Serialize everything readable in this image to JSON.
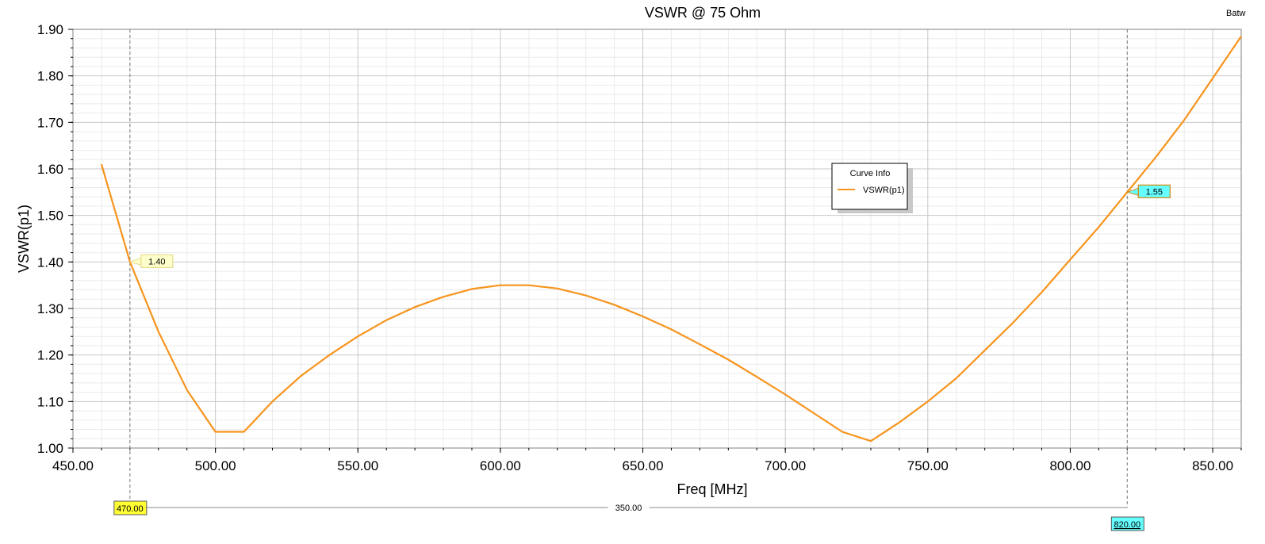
{
  "corner_text": "Batw",
  "chart_data": {
    "type": "line",
    "title": "VSWR @ 75 Ohm",
    "xlabel": "Freq [MHz]",
    "ylabel": "VSWR(p1)",
    "xlim": [
      450,
      860
    ],
    "ylim": [
      1.0,
      1.9
    ],
    "grid": true,
    "x_ticks": [
      "450.00",
      "500.00",
      "550.00",
      "600.00",
      "650.00",
      "700.00",
      "750.00",
      "800.00",
      "850.00"
    ],
    "y_ticks": [
      "1.00",
      "1.10",
      "1.20",
      "1.30",
      "1.40",
      "1.50",
      "1.60",
      "1.70",
      "1.80",
      "1.90"
    ],
    "legend": {
      "title": "Curve Info",
      "placement": "center-right"
    },
    "series": [
      {
        "name": "VSWR(p1)",
        "color": "#f7941d",
        "x": [
          460,
          470,
          480,
          490,
          500,
          510,
          520,
          530,
          540,
          550,
          560,
          570,
          580,
          590,
          600,
          610,
          620,
          630,
          640,
          650,
          660,
          670,
          680,
          690,
          700,
          710,
          720,
          730,
          740,
          750,
          760,
          770,
          780,
          790,
          800,
          810,
          820,
          830,
          840,
          850,
          860
        ],
        "y": [
          1.61,
          1.4,
          1.25,
          1.125,
          1.035,
          1.035,
          1.1,
          1.155,
          1.2,
          1.24,
          1.275,
          1.303,
          1.325,
          1.342,
          1.35,
          1.35,
          1.343,
          1.328,
          1.308,
          1.283,
          1.255,
          1.223,
          1.19,
          1.153,
          1.115,
          1.075,
          1.035,
          1.015,
          1.055,
          1.1,
          1.15,
          1.21,
          1.27,
          1.335,
          1.405,
          1.475,
          1.55,
          1.625,
          1.705,
          1.795,
          1.885
        ]
      }
    ],
    "markers": [
      {
        "x": 470,
        "value_label": "1.40",
        "x_label": "470.00",
        "x_color": "#ffff33",
        "value_color": "#ffffcc"
      },
      {
        "x": 820,
        "value_label": "1.55",
        "x_label": "820.00",
        "x_color": "#66ffff",
        "value_color": "#66ffff"
      }
    ],
    "delta": {
      "label": "350.00"
    }
  }
}
